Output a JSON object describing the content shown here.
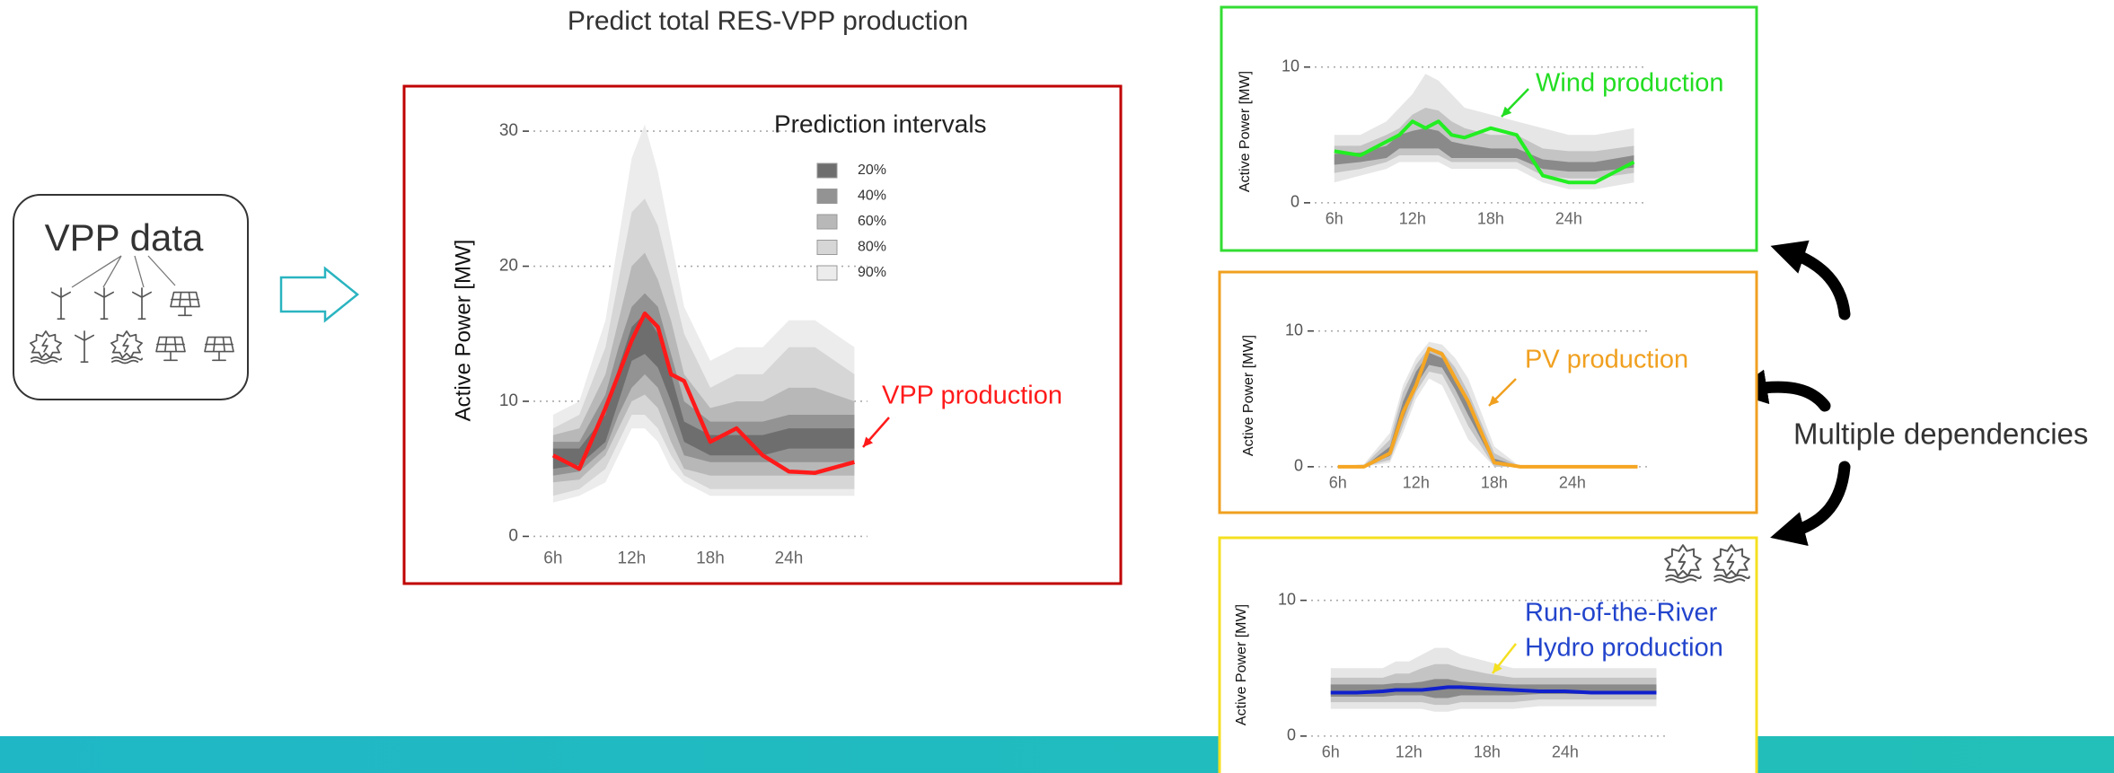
{
  "vpp_label": "VPP data",
  "dependencies_label": "Multiple dependencies",
  "chart_data": [
    {
      "type": "fan",
      "title": "Predict total RES-VPP production",
      "y_label": "Active Power [MW]",
      "legend_title": "Prediction intervals",
      "annotation": "VPP production",
      "border_color": "#c00000",
      "x": [
        6,
        8,
        10,
        11,
        12,
        13,
        14,
        15,
        16,
        18,
        20,
        22,
        24,
        26,
        29
      ],
      "xlim": [
        4.5,
        30
      ],
      "xticks": [
        {
          "value": 6,
          "label": "6h"
        },
        {
          "value": 12,
          "label": "12h"
        },
        {
          "value": 18,
          "label": "18h"
        },
        {
          "value": 24,
          "label": "24h"
        }
      ],
      "ylim": [
        -1.5,
        32
      ],
      "yticks": [
        0,
        10,
        20,
        30
      ],
      "grid": true,
      "series": [
        {
          "color": "#ff1a1a",
          "values": [
            6,
            5,
            9.5,
            12,
            14.5,
            16.5,
            15.5,
            12,
            11.5,
            7,
            8,
            6,
            4.8,
            4.7,
            5.5
          ]
        }
      ],
      "bands": [
        {
          "name": "20%",
          "color": "#6e6e6e",
          "lower": [
            5,
            5.3,
            7,
            10,
            13,
            13.5,
            12.5,
            10,
            7,
            6,
            6,
            6,
            6.5,
            6.5,
            6.5
          ],
          "upper": [
            6.5,
            6.5,
            9,
            12.5,
            15.5,
            16.5,
            15,
            12,
            8.5,
            7.5,
            7.5,
            7.5,
            8,
            8,
            8
          ]
        },
        {
          "name": "40%",
          "color": "#939393",
          "lower": [
            4.5,
            4.8,
            6.5,
            9,
            11,
            12,
            11,
            8.5,
            6,
            5.5,
            5.5,
            5.5,
            5.5,
            5.5,
            5.5
          ],
          "upper": [
            7,
            7,
            10.5,
            14,
            17,
            18,
            17,
            13.5,
            10,
            8.5,
            8.5,
            8.5,
            9,
            9,
            9
          ]
        },
        {
          "name": "60%",
          "color": "#b8b8b8",
          "lower": [
            4,
            4.2,
            6,
            8,
            10,
            10.5,
            9.5,
            7,
            5,
            4.5,
            4.5,
            4.5,
            4.5,
            4.5,
            4.5
          ],
          "upper": [
            7.5,
            8,
            12,
            16,
            20,
            21,
            19,
            16,
            12,
            9.5,
            10,
            10,
            11,
            11,
            10
          ]
        },
        {
          "name": "80%",
          "color": "#d6d6d6",
          "lower": [
            3,
            3.5,
            5,
            7,
            9,
            9,
            8,
            6,
            4.5,
            3.5,
            3.5,
            3.5,
            3.5,
            3.5,
            3.5
          ],
          "upper": [
            8,
            9,
            14,
            19,
            24,
            25,
            23,
            19,
            15,
            11,
            12,
            12,
            14,
            14,
            12
          ]
        },
        {
          "name": "90%",
          "color": "#ececec",
          "lower": [
            2.5,
            3,
            4,
            6,
            8,
            8,
            7,
            5,
            4,
            3,
            3,
            3,
            3,
            3,
            3
          ],
          "upper": [
            9,
            10,
            16,
            22,
            28,
            30.5,
            27,
            22,
            17,
            13,
            14,
            14,
            16,
            16,
            14
          ]
        }
      ]
    },
    {
      "type": "fan",
      "y_label": "Active Power [MW]",
      "annotation": "Wind production",
      "annotation_color": "#22dd22",
      "border_color": "#33dd33",
      "x": [
        6,
        8,
        10,
        11,
        12,
        13,
        14,
        15,
        16,
        18,
        20,
        22,
        24,
        26,
        29
      ],
      "xlim": [
        4.5,
        30
      ],
      "xticks": [
        {
          "value": 6,
          "label": "6h"
        },
        {
          "value": 12,
          "label": "12h"
        },
        {
          "value": 18,
          "label": "18h"
        },
        {
          "value": 24,
          "label": "24h"
        }
      ],
      "ylim": [
        -1,
        11.5
      ],
      "yticks": [
        0,
        10
      ],
      "grid": true,
      "series": [
        {
          "color": "#22ee22",
          "values": [
            3.8,
            3.5,
            4.5,
            5,
            6,
            5.5,
            6,
            5,
            4.8,
            5.5,
            5,
            2,
            1.5,
            1.5,
            3
          ]
        }
      ],
      "bands": [
        {
          "color": "#8a8a8a",
          "lower": [
            2.8,
            3,
            3.3,
            4,
            4,
            4,
            4,
            3.3,
            3.3,
            3.3,
            3.3,
            2.5,
            2.3,
            2.3,
            2.6
          ],
          "upper": [
            3.6,
            3.7,
            4.2,
            5,
            5.3,
            5.5,
            5.3,
            4.5,
            4.3,
            4,
            4,
            3.2,
            3,
            3,
            3.5
          ]
        },
        {
          "color": "#c4c4c4",
          "lower": [
            2.2,
            2.5,
            3,
            3.5,
            3.5,
            3.5,
            3.5,
            3,
            3,
            3,
            3,
            2,
            1.8,
            1.8,
            2.2
          ],
          "upper": [
            4.2,
            4.2,
            5,
            5.5,
            6.5,
            7,
            6.8,
            6,
            5.5,
            5,
            5,
            4,
            3.8,
            3.8,
            4.2
          ]
        },
        {
          "color": "#e6e6e6",
          "lower": [
            1.5,
            2,
            2.5,
            3,
            3,
            3,
            3,
            2.5,
            2.5,
            2.5,
            2.5,
            1.5,
            1,
            1,
            1.5
          ],
          "upper": [
            5,
            5,
            6,
            7,
            8,
            9.5,
            9,
            8,
            7,
            6.5,
            6,
            5.5,
            5,
            5,
            5.5
          ]
        }
      ]
    },
    {
      "type": "fan",
      "y_label": "Active Power [MW]",
      "annotation": "PV production",
      "annotation_color": "#f0a020",
      "border_color": "#f0a020",
      "x": [
        6,
        8,
        10,
        11,
        12,
        13,
        14,
        15,
        16,
        18,
        20,
        22,
        24,
        26,
        29
      ],
      "xlim": [
        4.5,
        30
      ],
      "xticks": [
        {
          "value": 6,
          "label": "6h"
        },
        {
          "value": 12,
          "label": "12h"
        },
        {
          "value": 18,
          "label": "18h"
        },
        {
          "value": 24,
          "label": "24h"
        }
      ],
      "ylim": [
        -1,
        11.5
      ],
      "yticks": [
        0,
        10
      ],
      "grid": true,
      "series": [
        {
          "color": "#f5a623",
          "values": [
            0,
            0,
            1,
            4,
            6,
            8.7,
            8.3,
            6.5,
            4.8,
            0.3,
            0,
            0,
            0,
            0,
            0
          ]
        }
      ],
      "bands": [
        {
          "color": "#8a8a8a",
          "lower": [
            0,
            0,
            0.8,
            3.5,
            6,
            7.5,
            7.3,
            5.7,
            3.8,
            0.2,
            0,
            0,
            0,
            0,
            0
          ],
          "upper": [
            0,
            0,
            1.5,
            4.8,
            7,
            8.4,
            8,
            6.7,
            4.8,
            0.6,
            0,
            0,
            0,
            0,
            0
          ]
        },
        {
          "color": "#c4c4c4",
          "lower": [
            0,
            0,
            0.5,
            3,
            5.5,
            7,
            6.8,
            5,
            3,
            0,
            0,
            0,
            0,
            0,
            0
          ],
          "upper": [
            0,
            0.1,
            2,
            5.5,
            7.5,
            8.8,
            8.5,
            7.3,
            5.5,
            1,
            0,
            0,
            0,
            0,
            0
          ]
        },
        {
          "color": "#e6e6e6",
          "lower": [
            0,
            0,
            0.3,
            2.5,
            5,
            6.5,
            6,
            4,
            2,
            0,
            0,
            0,
            0,
            0,
            0
          ],
          "upper": [
            0,
            0.2,
            2.5,
            6,
            8,
            9.2,
            9,
            8,
            6.5,
            1.5,
            0,
            0,
            0,
            0,
            0
          ]
        }
      ]
    },
    {
      "type": "fan",
      "y_label": "Active Power [MW]",
      "annotation": [
        "Run-of-the-River",
        "Hydro production"
      ],
      "annotation_color": "#2244cc",
      "arrow_color": "#f5e020",
      "border_color": "#f5e020",
      "x": [
        6,
        8,
        10,
        11,
        12,
        13,
        14,
        15,
        16,
        18,
        20,
        22,
        24,
        26,
        31
      ],
      "xlim": [
        4.5,
        32
      ],
      "xticks": [
        {
          "value": 6,
          "label": "6h"
        },
        {
          "value": 12,
          "label": "12h"
        },
        {
          "value": 18,
          "label": "18h"
        },
        {
          "value": 24,
          "label": "24h"
        }
      ],
      "ylim": [
        -1,
        11.5
      ],
      "yticks": [
        0,
        10
      ],
      "grid": true,
      "series": [
        {
          "color": "#1020cc",
          "values": [
            3.2,
            3.2,
            3.3,
            3.4,
            3.4,
            3.4,
            3.5,
            3.6,
            3.6,
            3.5,
            3.4,
            3.3,
            3.3,
            3.2,
            3.2
          ]
        }
      ],
      "bands": [
        {
          "color": "#8a8a8a",
          "lower": [
            2.9,
            2.9,
            2.9,
            3,
            3,
            3,
            2.8,
            2.8,
            3,
            3,
            3,
            3.1,
            3.1,
            3.1,
            3.1
          ],
          "upper": [
            3.8,
            3.8,
            3.8,
            3.9,
            3.9,
            4,
            4.2,
            4.2,
            4,
            3.9,
            3.8,
            3.8,
            3.8,
            3.8,
            3.8
          ]
        },
        {
          "color": "#c4c4c4",
          "lower": [
            2.5,
            2.5,
            2.5,
            2.5,
            2.5,
            2.5,
            2.3,
            2.3,
            2.5,
            2.5,
            2.5,
            2.7,
            2.7,
            2.7,
            2.7
          ],
          "upper": [
            4.3,
            4.3,
            4.3,
            4.6,
            4.6,
            5,
            5.3,
            5.3,
            5,
            4.6,
            4.3,
            4.3,
            4.3,
            4.3,
            4.3
          ]
        },
        {
          "color": "#e6e6e6",
          "lower": [
            2,
            2,
            2,
            2,
            2,
            2,
            1.8,
            1.8,
            2,
            2,
            2,
            2.2,
            2.2,
            2.2,
            2.2
          ],
          "upper": [
            5,
            5,
            5,
            5.5,
            5.5,
            6,
            6.5,
            6.5,
            6,
            5.5,
            5,
            5,
            5,
            5,
            5
          ]
        }
      ]
    }
  ]
}
